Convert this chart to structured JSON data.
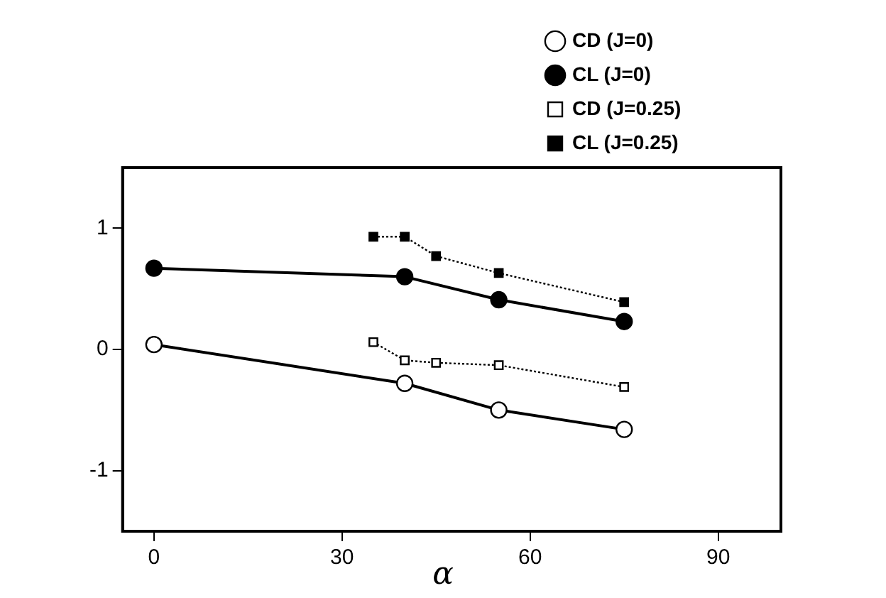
{
  "chart_data": {
    "type": "line",
    "xlabel": "α",
    "x": [
      0,
      40,
      55,
      75
    ],
    "series": [
      {
        "name": "CD (J=0)",
        "color": "#000000",
        "marker": "circle",
        "line_style": "solid",
        "values": [
          0.04,
          -0.28,
          -0.5,
          -0.66
        ]
      },
      {
        "name": "CL (J=0)",
        "color": "#000000",
        "marker": "circle",
        "line_style": "solid",
        "values": [
          0.67,
          0.6,
          0.41,
          0.23
        ]
      },
      {
        "name": "CD (J=0.25)",
        "color": "#000000",
        "marker": "square",
        "line_style": "dotted",
        "x": [
          35,
          40,
          45,
          55,
          75
        ],
        "values": [
          0.06,
          -0.09,
          -0.11,
          -0.13,
          -0.31
        ]
      },
      {
        "name": "CL (J=0.25)",
        "color": "#000000",
        "marker": "square",
        "line_style": "dotted",
        "x": [
          35,
          40,
          45,
          55,
          75
        ],
        "values": [
          0.93,
          0.93,
          0.77,
          0.63,
          0.39
        ]
      }
    ],
    "xlim": [
      -5,
      100
    ],
    "xticks": [
      0,
      30,
      60,
      90
    ],
    "ylim": [
      -1.5,
      1.5
    ],
    "yticks": [
      -1,
      0,
      1
    ],
    "grid": false,
    "legend": "top right"
  }
}
